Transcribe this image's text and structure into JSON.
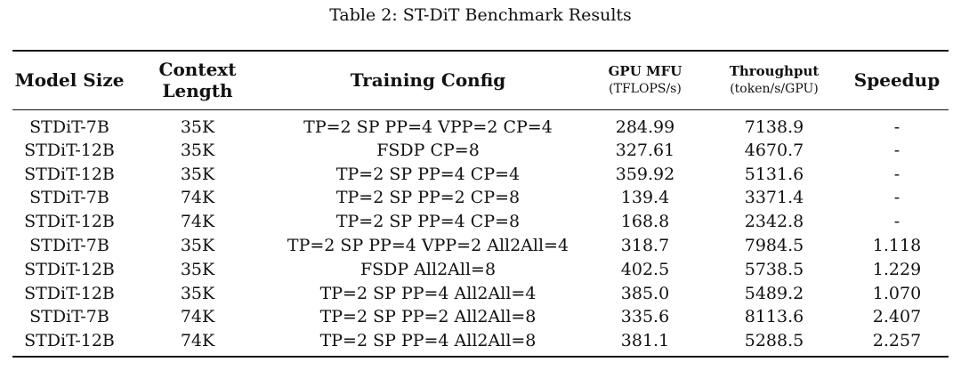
{
  "caption": "Table 2: ST-DiT Benchmark Results",
  "headers": {
    "model_size": "Model Size",
    "context_length": "Context Length",
    "training_config": "Training Config",
    "gpu_mfu": "GPU MFU",
    "gpu_mfu_unit": "(TFLOPS/s)",
    "throughput": "Throughput",
    "throughput_unit": "(token/s/GPU)",
    "speedup": "Speedup"
  },
  "rows": [
    [
      "STDiT-7B",
      "35K",
      "TP=2 SP PP=4 VPP=2 CP=4",
      "284.99",
      "7138.9",
      "-"
    ],
    [
      "STDiT-12B",
      "35K",
      "FSDP CP=8",
      "327.61",
      "4670.7",
      "-"
    ],
    [
      "STDiT-12B",
      "35K",
      "TP=2 SP PP=4 CP=4",
      "359.92",
      "5131.6",
      "-"
    ],
    [
      "STDiT-7B",
      "74K",
      "TP=2 SP PP=2 CP=8",
      "139.4",
      "3371.4",
      "-"
    ],
    [
      "STDiT-12B",
      "74K",
      "TP=2 SP PP=4 CP=8",
      "168.8",
      "2342.8",
      "-"
    ],
    [
      "STDiT-7B",
      "35K",
      "TP=2 SP PP=4 VPP=2 All2All=4",
      "318.7",
      "7984.5",
      "1.118"
    ],
    [
      "STDiT-12B",
      "35K",
      "FSDP All2All=8",
      "402.5",
      "5738.5",
      "1.229"
    ],
    [
      "STDiT-12B",
      "35K",
      "TP=2 SP PP=4 All2All=4",
      "385.0",
      "5489.2",
      "1.070"
    ],
    [
      "STDiT-7B",
      "74K",
      "TP=2 SP PP=2 All2All=8",
      "335.6",
      "8113.6",
      "2.407"
    ],
    [
      "STDiT-12B",
      "74K",
      "TP=2 SP PP=4 All2All=8",
      "381.1",
      "5288.5",
      "2.257"
    ]
  ]
}
